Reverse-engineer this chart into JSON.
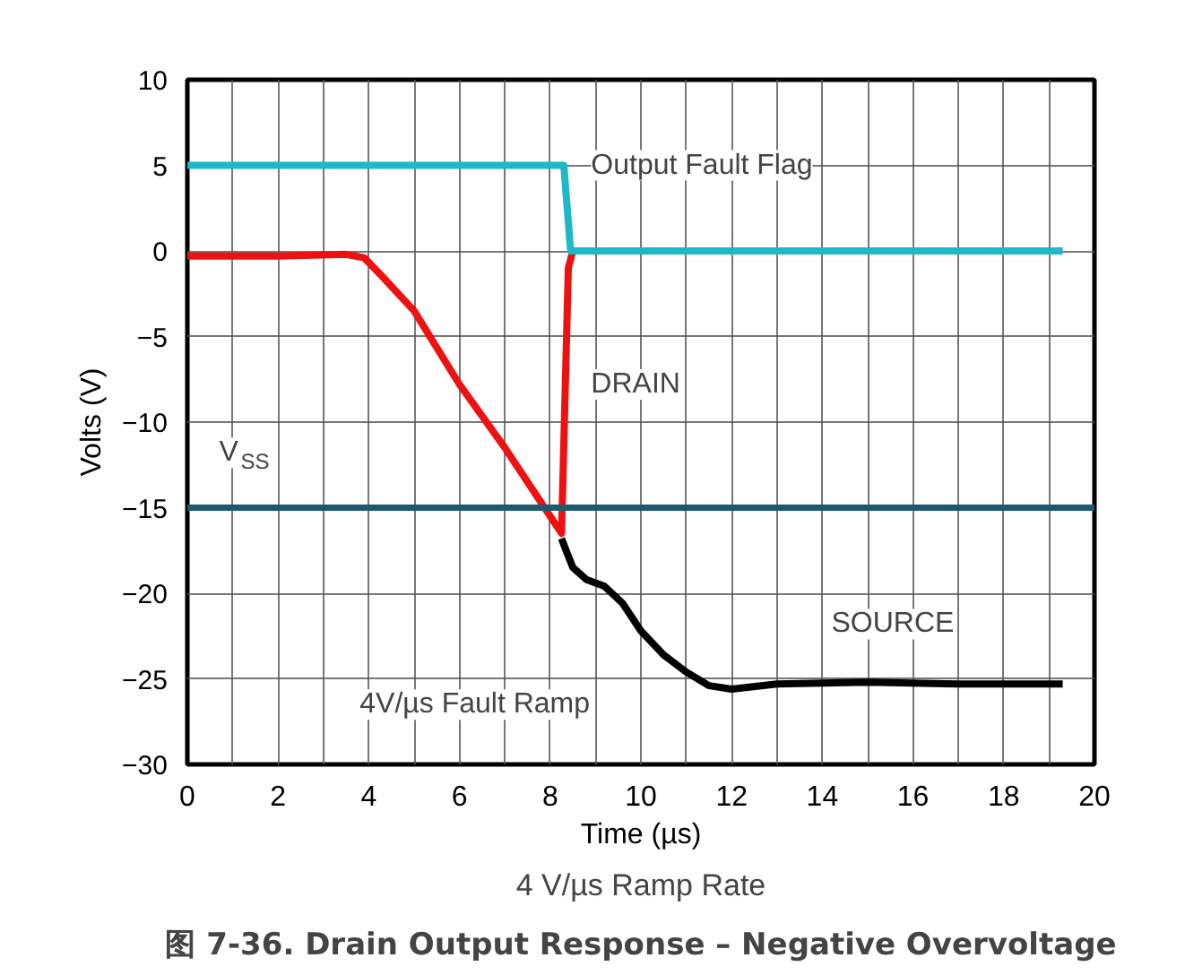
{
  "chart_data": {
    "type": "line",
    "title": "图 7-36. Drain Output Response – Negative Overvoltage",
    "subtitle": "4 V/µs Ramp Rate",
    "xlabel": "Time (µs)",
    "ylabel": "Volts (V)",
    "xlim": [
      0,
      20
    ],
    "ylim": [
      -30,
      10
    ],
    "xticks": [
      0,
      {
        "value": 1,
        "label": null
      },
      2,
      {
        "value": 3,
        "label": null
      },
      4,
      {
        "value": 5,
        "label": null
      },
      6,
      {
        "value": 7,
        "label": null
      },
      8,
      {
        "value": 9,
        "label": null
      },
      10,
      {
        "value": 11,
        "label": null
      },
      12,
      {
        "value": 13,
        "label": null
      },
      14,
      {
        "value": 15,
        "label": null
      },
      16,
      {
        "value": 17,
        "label": null
      },
      18,
      {
        "value": 19,
        "label": null
      },
      20
    ],
    "yticks": [
      -30,
      -25,
      -20,
      -15,
      -10,
      -5,
      0,
      5,
      10
    ],
    "grid": true,
    "marker": "none",
    "line_style": "solid",
    "series": [
      {
        "name": "DRAIN",
        "color": "#ee1111",
        "x": [
          0,
          2,
          3.5,
          3.9,
          4.3,
          5,
          6,
          7,
          8,
          8.25,
          8.4,
          8.5
        ],
        "values": [
          -0.3,
          -0.3,
          -0.2,
          -0.4,
          -1.5,
          -3.5,
          -7.8,
          -11.5,
          -15.5,
          -16.5,
          -1,
          0
        ]
      },
      {
        "name": "SOURCE",
        "color": "#000000",
        "x": [
          8.25,
          8.35,
          8.5,
          8.8,
          9.2,
          9.6,
          10,
          10.5,
          11,
          11.5,
          12,
          13,
          15,
          17,
          19.3
        ],
        "values": [
          -16.8,
          -17.5,
          -18.5,
          -19.2,
          -19.6,
          -20.6,
          -22.2,
          -23.6,
          -24.6,
          -25.4,
          -25.6,
          -25.3,
          -25.2,
          -25.3,
          -25.3
        ]
      },
      {
        "name": "Output Fault Flag",
        "color": "#1fb8c8",
        "x": [
          0,
          4,
          8.3,
          8.45,
          10,
          14,
          19.3
        ],
        "values": [
          5,
          5,
          5,
          0,
          0,
          0,
          0
        ]
      }
    ],
    "ref_lines": [
      {
        "axis": "y",
        "value": -15,
        "label": "V$_{SS}$",
        "color": "#1a5a6e"
      }
    ],
    "annotations": [
      "4V/µs Fault Ramp"
    ]
  }
}
